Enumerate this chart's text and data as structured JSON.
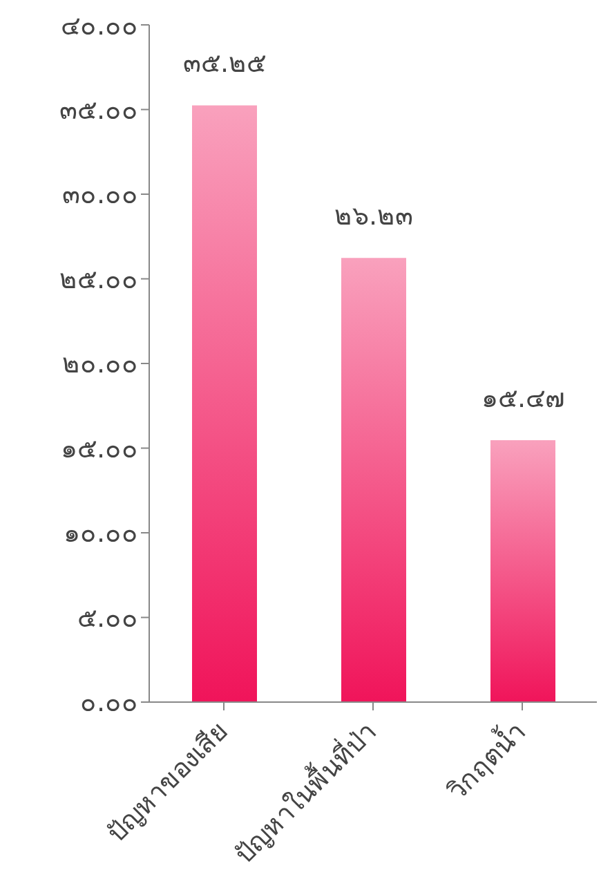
{
  "chart_data": {
    "type": "bar",
    "categories": [
      "ปัญหาของเสีย",
      "ปัญหาในพื้นที่ป่า",
      "วิกฤตน้ำ"
    ],
    "values": [
      35.25,
      26.23,
      15.47
    ],
    "value_labels": [
      "๓๕.๒๕",
      "๒๖.๒๓",
      "๑๕.๔๗"
    ],
    "color": "#f0145a",
    "ylim": [
      0,
      40
    ],
    "yticks": [
      {
        "value": 0,
        "label": "๐.๐๐"
      },
      {
        "value": 5,
        "label": "๕.๐๐"
      },
      {
        "value": 10,
        "label": "๑๐.๐๐"
      },
      {
        "value": 15,
        "label": "๑๕.๐๐"
      },
      {
        "value": 20,
        "label": "๒๐.๐๐"
      },
      {
        "value": 25,
        "label": "๒๕.๐๐"
      },
      {
        "value": 30,
        "label": "๓๐.๐๐"
      },
      {
        "value": 35,
        "label": "๓๕.๐๐"
      },
      {
        "value": 40,
        "label": "๔๐.๐๐"
      }
    ],
    "grid": false,
    "legend": false
  }
}
